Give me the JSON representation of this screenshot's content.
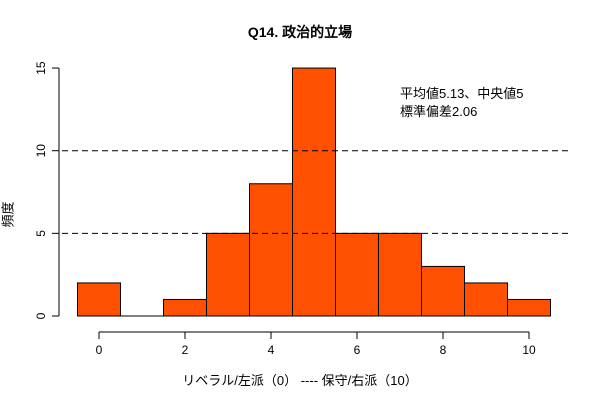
{
  "chart_data": {
    "type": "bar",
    "title": "Q14. 政治的立場",
    "xlabel": "リベラル/左派（0） ----  保守/右派（10）",
    "ylabel": "頻度",
    "categories": [
      "0",
      "1",
      "2",
      "3",
      "4",
      "5",
      "6",
      "7",
      "8",
      "9",
      "10"
    ],
    "values": [
      2,
      0,
      1,
      5,
      8,
      15,
      5,
      5,
      3,
      2,
      1
    ],
    "xticks": [
      0,
      2,
      4,
      6,
      8,
      10
    ],
    "yticks": [
      0,
      5,
      10,
      15
    ],
    "xlim": [
      -0.5,
      10.5
    ],
    "ylim": [
      0,
      15
    ],
    "reference_lines": [
      5,
      10
    ],
    "grid": false,
    "bar_color": "#FF4F00",
    "annotations": [
      "平均値5.13、中央値5",
      "標準偏差2.06"
    ],
    "statistics": {
      "mean": 5.13,
      "median": 5,
      "sd": 2.06
    }
  },
  "title": "Q14. 政治的立場",
  "annotation": {
    "line1": "平均値5.13、中央値5",
    "line2": "標準偏差2.06"
  },
  "xlabel": "リベラル/左派（0） ----  保守/右派（10）",
  "ylabel": "頻度"
}
